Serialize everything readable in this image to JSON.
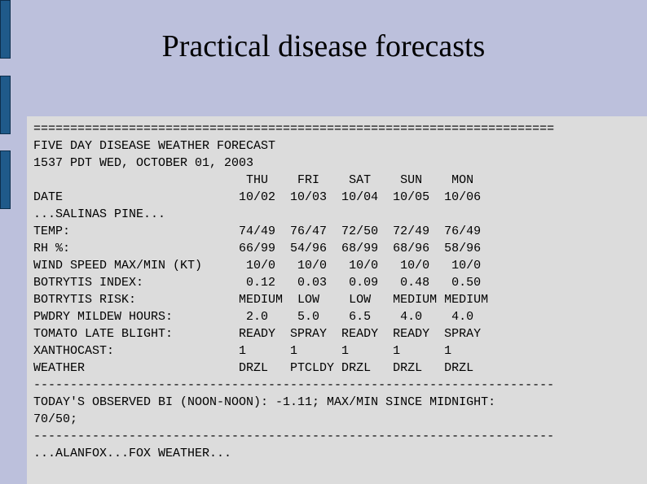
{
  "slide": {
    "title": "Practical disease forecasts"
  },
  "forecast": {
    "lines": [
      "=======================================================================",
      "FIVE DAY DISEASE WEATHER FORECAST",
      "1537 PDT WED, OCTOBER 01, 2003",
      "                             THU    FRI    SAT    SUN    MON",
      "DATE                        10/02  10/03  10/04  10/05  10/06",
      "...SALINAS PINE...",
      "TEMP:                       74/49  76/47  72/50  72/49  76/49",
      "RH %:                       66/99  54/96  68/99  68/96  58/96",
      "WIND SPEED MAX/MIN (KT)      10/0   10/0   10/0   10/0   10/0",
      "BOTRYTIS INDEX:              0.12   0.03   0.09   0.48   0.50",
      "BOTRYTIS RISK:              MEDIUM  LOW    LOW   MEDIUM MEDIUM",
      "PWDRY MILDEW HOURS:          2.0    5.0    6.5    4.0    4.0",
      "TOMATO LATE BLIGHT:         READY  SPRAY  READY  READY  SPRAY",
      "XANTHOCAST:                 1      1      1      1      1",
      "WEATHER                     DRZL   PTCLDY DRZL   DRZL   DRZL",
      "-----------------------------------------------------------------------",
      "TODAY'S OBSERVED BI (NOON-NOON): -1.11; MAX/MIN SINCE MIDNIGHT:",
      "70/50;",
      "-----------------------------------------------------------------------",
      "...ALANFOX...FOX WEATHER..."
    ]
  }
}
